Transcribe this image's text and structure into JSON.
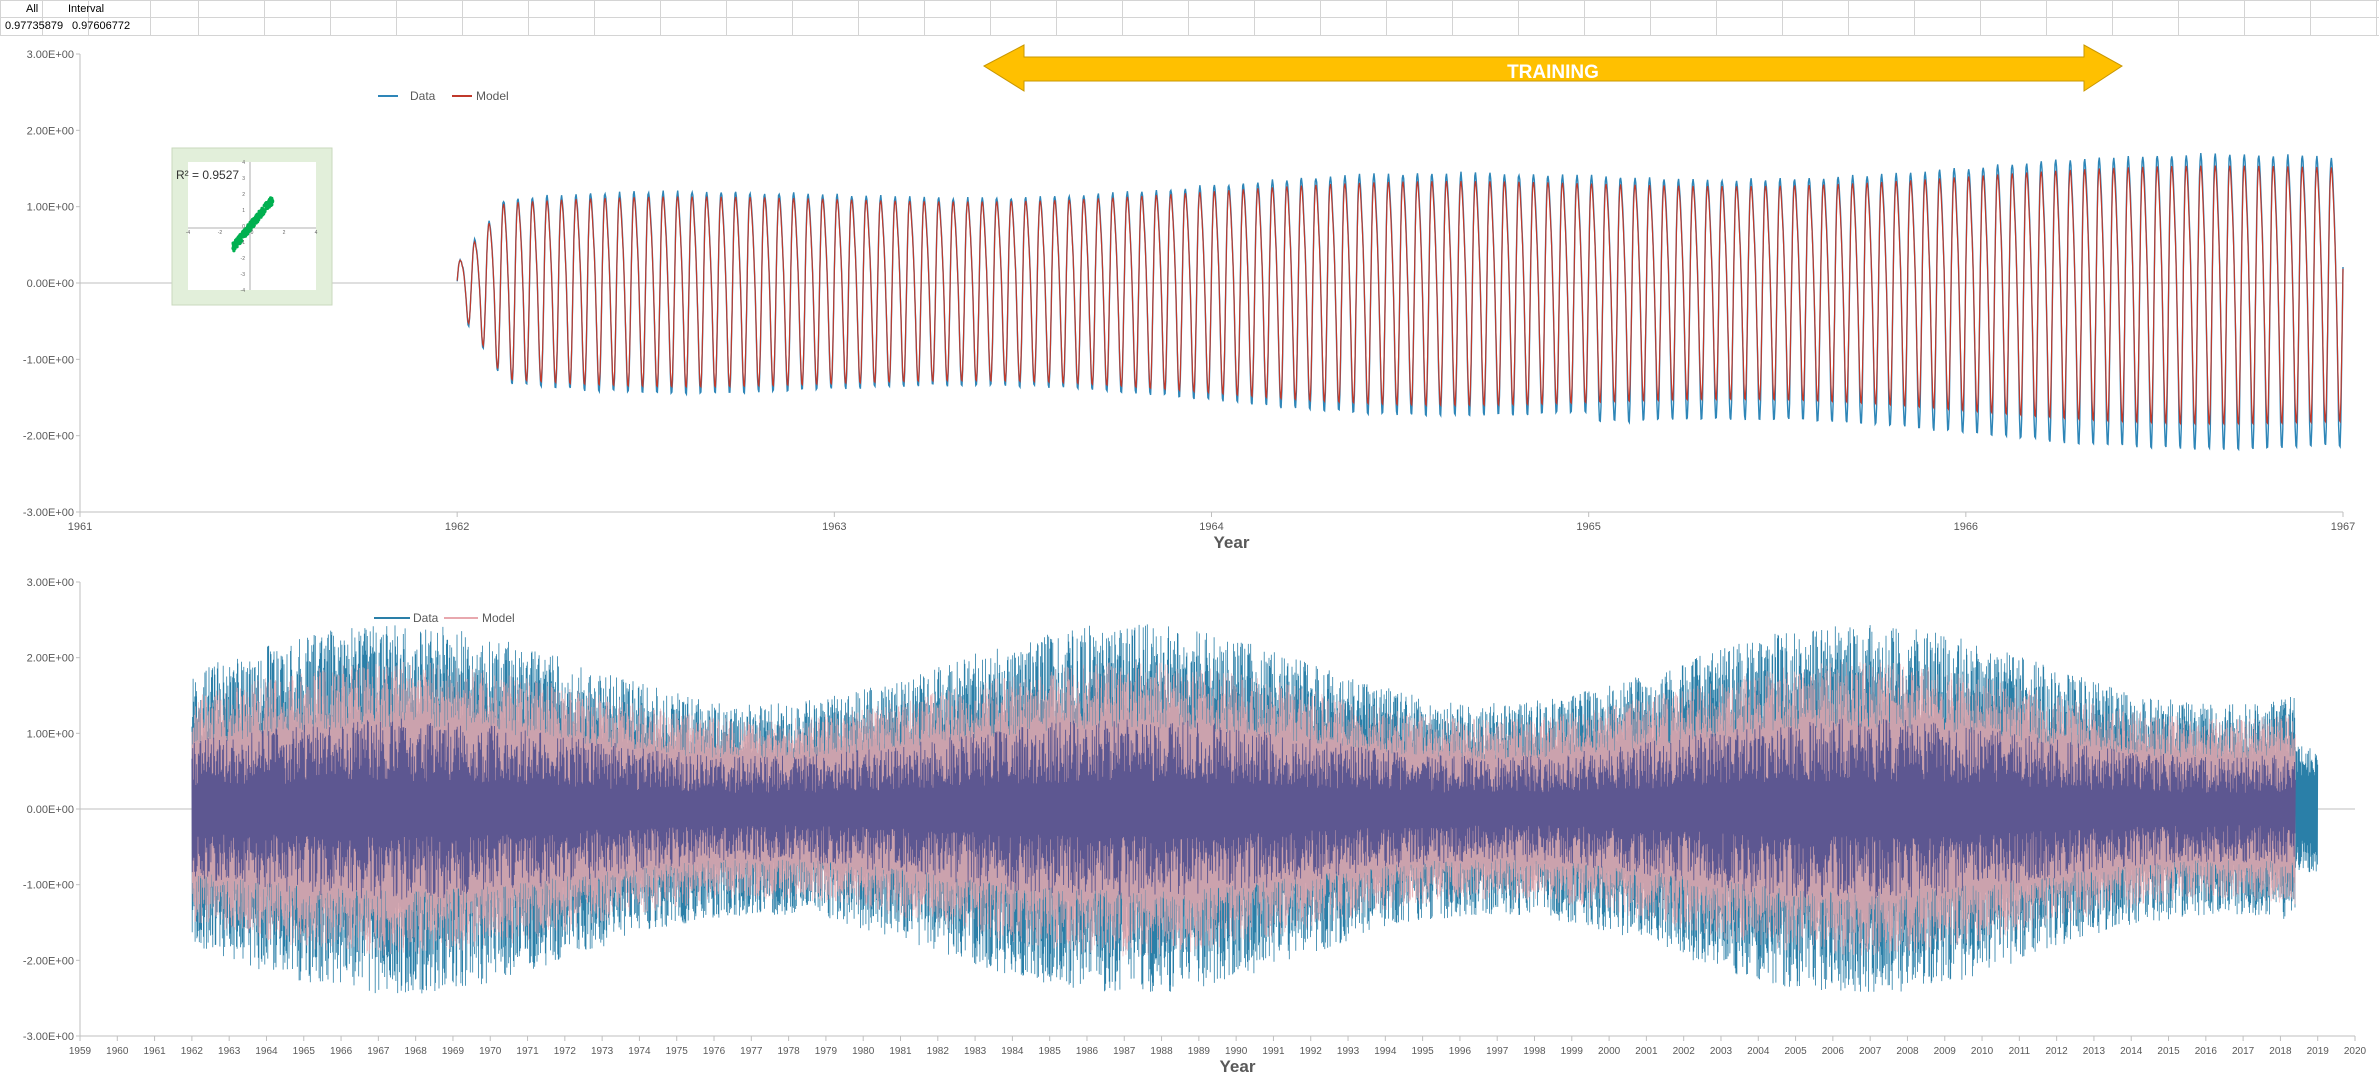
{
  "sheet": {
    "headers": [
      "All",
      "Interval"
    ],
    "values": [
      "0.97735879",
      "0.97606772"
    ]
  },
  "training_label": "TRAINING",
  "inset": {
    "r2_label": "R² = 0.9527"
  },
  "chart_data": [
    {
      "type": "line",
      "title": "",
      "xlabel": "Year",
      "ylabel": "",
      "xlim": [
        1961,
        1967
      ],
      "ylim": [
        -3,
        3
      ],
      "x_ticks": [
        "1961",
        "1962",
        "1963",
        "1964",
        "1965",
        "1966",
        "1967"
      ],
      "y_ticks": [
        "3.00E+00",
        "2.00E+00",
        "1.00E+00",
        "0.00E+00",
        "-1.00E+00",
        "-2.00E+00",
        "-3.00E+00"
      ],
      "legend_position": "top-left",
      "series": [
        {
          "name": "Data",
          "color": "#2e86b8",
          "x_range": [
            1962.0,
            1967.0
          ],
          "cycles_per_year": 26,
          "amplitude_range": [
            1.3,
            2.05
          ]
        },
        {
          "name": "Model",
          "color": "#c0392b",
          "x_range": [
            1962.0,
            1967.0
          ],
          "cycles_per_year": 26,
          "amplitude_range": [
            1.3,
            1.95
          ]
        }
      ],
      "annotation": {
        "text": "TRAINING",
        "x_range": [
          1963.4,
          1966.4
        ],
        "y": 2.7,
        "color": "#ffc000"
      },
      "inset_scatter": {
        "label": "R² = 0.9527",
        "xlim": [
          -4,
          4
        ],
        "ylim": [
          -4,
          4
        ],
        "x_ticks": [
          "-4",
          "-2",
          "0",
          "2",
          "4"
        ],
        "y_ticks": [
          "4",
          "3",
          "2",
          "1",
          "0",
          "-1",
          "-2",
          "-3",
          "-4"
        ],
        "color": "#00b050"
      }
    },
    {
      "type": "line",
      "title": "",
      "xlabel": "Year",
      "ylabel": "",
      "xlim": [
        1959,
        2020
      ],
      "ylim": [
        -3,
        3
      ],
      "x_ticks": [
        "1959",
        "1960",
        "1961",
        "1962",
        "1963",
        "1964",
        "1965",
        "1966",
        "1967",
        "1968",
        "1969",
        "1970",
        "1971",
        "1972",
        "1973",
        "1974",
        "1975",
        "1976",
        "1977",
        "1978",
        "1979",
        "1980",
        "1981",
        "1982",
        "1983",
        "1984",
        "1985",
        "1986",
        "1987",
        "1988",
        "1989",
        "1990",
        "1991",
        "1992",
        "1993",
        "1994",
        "1995",
        "1996",
        "1997",
        "1998",
        "1999",
        "2000",
        "2001",
        "2002",
        "2003",
        "2004",
        "2005",
        "2006",
        "2007",
        "2008",
        "2009",
        "2010",
        "2011",
        "2012",
        "2013",
        "2014",
        "2015",
        "2016",
        "2017",
        "2018",
        "2019",
        "2020"
      ],
      "y_ticks": [
        "3.00E+00",
        "2.00E+00",
        "1.00E+00",
        "0.00E+00",
        "-1.00E+00",
        "-2.00E+00",
        "-3.00E+00"
      ],
      "legend_position": "top-left",
      "series": [
        {
          "name": "Data",
          "color": "#2a7fa8",
          "x_range": [
            1962.0,
            2019.0
          ],
          "amplitude_range": [
            1.4,
            2.45
          ]
        },
        {
          "name": "Model",
          "color": "#e8a8ae",
          "x_range": [
            1962.0,
            2018.4
          ],
          "amplitude_range": [
            1.2,
            1.95
          ]
        }
      ]
    }
  ]
}
